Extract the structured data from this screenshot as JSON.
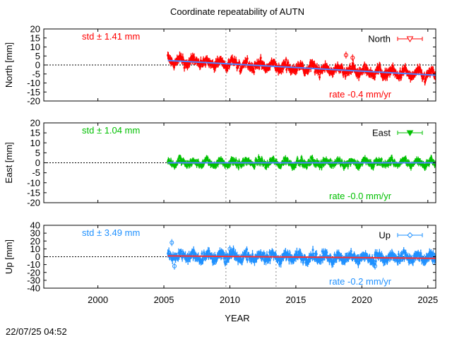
{
  "chart_data": {
    "type": "scatter",
    "title": "Coordinate repeatability of AUTN",
    "xlabel": "YEAR",
    "timestamp": "22/07/25 04:52",
    "xlim": [
      1995.9,
      2025.6
    ],
    "x_ticks": [
      2000,
      2005,
      2010,
      2015,
      2020,
      2025
    ],
    "event_lines_x": [
      2009.7,
      2013.5
    ],
    "panels": [
      {
        "id": "north",
        "ylabel": "North [mm]",
        "legend": "North",
        "legend_marker": "triangle-down-open",
        "color": "#ff0000",
        "trend_color": "#4f81ff",
        "ylim": [
          -20,
          20
        ],
        "y_ticks": [
          20,
          15,
          10,
          5,
          0,
          -5,
          -10,
          -15,
          -20
        ],
        "std_label": "std ± 1.41 mm",
        "rate_label": "rate -0.4 mm/yr",
        "data_start": 2005.3,
        "data_end": 2025.6,
        "trend_start": 2.5,
        "trend_end": -5.7,
        "noise": 1.6,
        "seasonal": 1.8,
        "outliers": [
          [
            2018.8,
            5.5
          ],
          [
            2019.3,
            4.0
          ]
        ]
      },
      {
        "id": "east",
        "ylabel": "East [mm]",
        "legend": "East",
        "legend_marker": "triangle-down-filled",
        "color": "#00c000",
        "trend_color": "#4f81ff",
        "ylim": [
          -20,
          20
        ],
        "y_ticks": [
          20,
          15,
          10,
          5,
          0,
          -5,
          -10,
          -15,
          -20
        ],
        "std_label": "std ± 1.04 mm",
        "rate_label": "rate -0.0 mm/yr",
        "data_start": 2005.3,
        "data_end": 2025.6,
        "trend_start": 0.0,
        "trend_end": 0.0,
        "noise": 1.1,
        "seasonal": 1.2,
        "outliers": []
      },
      {
        "id": "up",
        "ylabel": "Up [mm]",
        "legend": "Up",
        "legend_marker": "diamond-open",
        "color": "#1e90ff",
        "trend_color": "#ff3030",
        "ylim": [
          -40,
          40
        ],
        "y_ticks": [
          40,
          30,
          20,
          10,
          0,
          -10,
          -20,
          -30,
          -40
        ],
        "std_label": "std ± 3.49 mm",
        "rate_label": "rate -0.2 mm/yr",
        "data_start": 2005.3,
        "data_end": 2025.6,
        "trend_start": 1.0,
        "trend_end": -2.0,
        "noise": 3.8,
        "seasonal": 3.5,
        "outliers": [
          [
            2005.6,
            18.0
          ],
          [
            2005.8,
            -12.0
          ],
          [
            2010.0,
            10.0
          ],
          [
            2021.0,
            -12.0
          ]
        ]
      }
    ]
  }
}
